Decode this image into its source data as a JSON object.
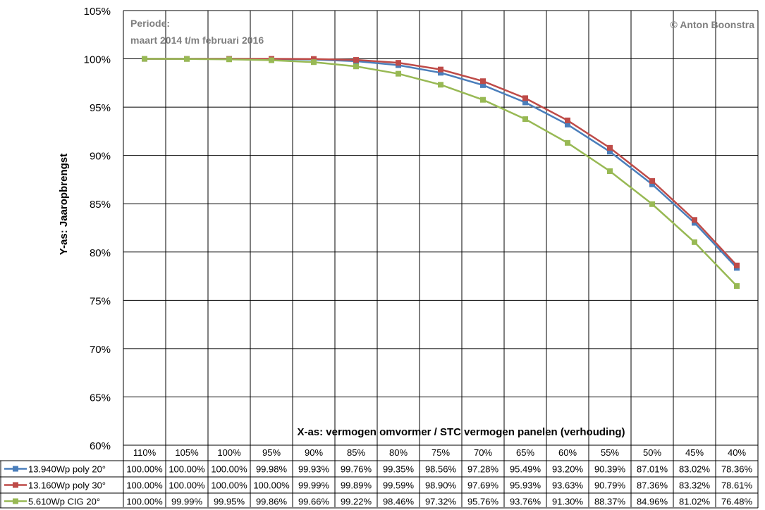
{
  "chart_data": {
    "type": "line",
    "ylabel": "Y-as: Jaaropbrengst",
    "xlabel": "X-as: vermogen omvormer / STC vermogen panelen (verhouding)",
    "period_label": "Periode:",
    "period_value": "maart 2014 t/m februari 2016",
    "copyright": "© Anton Boonstra",
    "ylim": [
      60,
      105
    ],
    "y_ticks": [
      "60%",
      "65%",
      "70%",
      "75%",
      "80%",
      "85%",
      "90%",
      "95%",
      "100%",
      "105%"
    ],
    "grid": true,
    "legend_placement": "data-table",
    "categories": [
      "110%",
      "105%",
      "100%",
      "95%",
      "90%",
      "85%",
      "80%",
      "75%",
      "70%",
      "65%",
      "60%",
      "55%",
      "50%",
      "45%",
      "40%"
    ],
    "series": [
      {
        "name": "13.940Wp poly 20°",
        "color": "#4a7ebb",
        "values": [
          100.0,
          100.0,
          100.0,
          99.98,
          99.93,
          99.76,
          99.35,
          98.56,
          97.28,
          95.49,
          93.2,
          90.39,
          87.01,
          83.02,
          78.36
        ],
        "labels": [
          "100.00%",
          "100.00%",
          "100.00%",
          "99.98%",
          "99.93%",
          "99.76%",
          "99.35%",
          "98.56%",
          "97.28%",
          "95.49%",
          "93.20%",
          "90.39%",
          "87.01%",
          "83.02%",
          "78.36%"
        ]
      },
      {
        "name": "13.160Wp poly 30°",
        "color": "#be4b48",
        "values": [
          100.0,
          100.0,
          100.0,
          100.0,
          99.99,
          99.89,
          99.59,
          98.9,
          97.69,
          95.93,
          93.63,
          90.79,
          87.36,
          83.32,
          78.61
        ],
        "labels": [
          "100.00%",
          "100.00%",
          "100.00%",
          "100.00%",
          "99.99%",
          "99.89%",
          "99.59%",
          "98.90%",
          "97.69%",
          "95.93%",
          "93.63%",
          "90.79%",
          "87.36%",
          "83.32%",
          "78.61%"
        ]
      },
      {
        "name": "5.610Wp CIG 20°",
        "color": "#98b954",
        "values": [
          100.0,
          99.99,
          99.95,
          99.86,
          99.66,
          99.22,
          98.46,
          97.32,
          95.76,
          93.76,
          91.3,
          88.37,
          84.96,
          81.02,
          76.48
        ],
        "labels": [
          "100.00%",
          "99.99%",
          "99.95%",
          "99.86%",
          "99.66%",
          "99.22%",
          "98.46%",
          "97.32%",
          "95.76%",
          "93.76%",
          "91.30%",
          "88.37%",
          "84.96%",
          "81.02%",
          "76.48%"
        ]
      }
    ]
  }
}
